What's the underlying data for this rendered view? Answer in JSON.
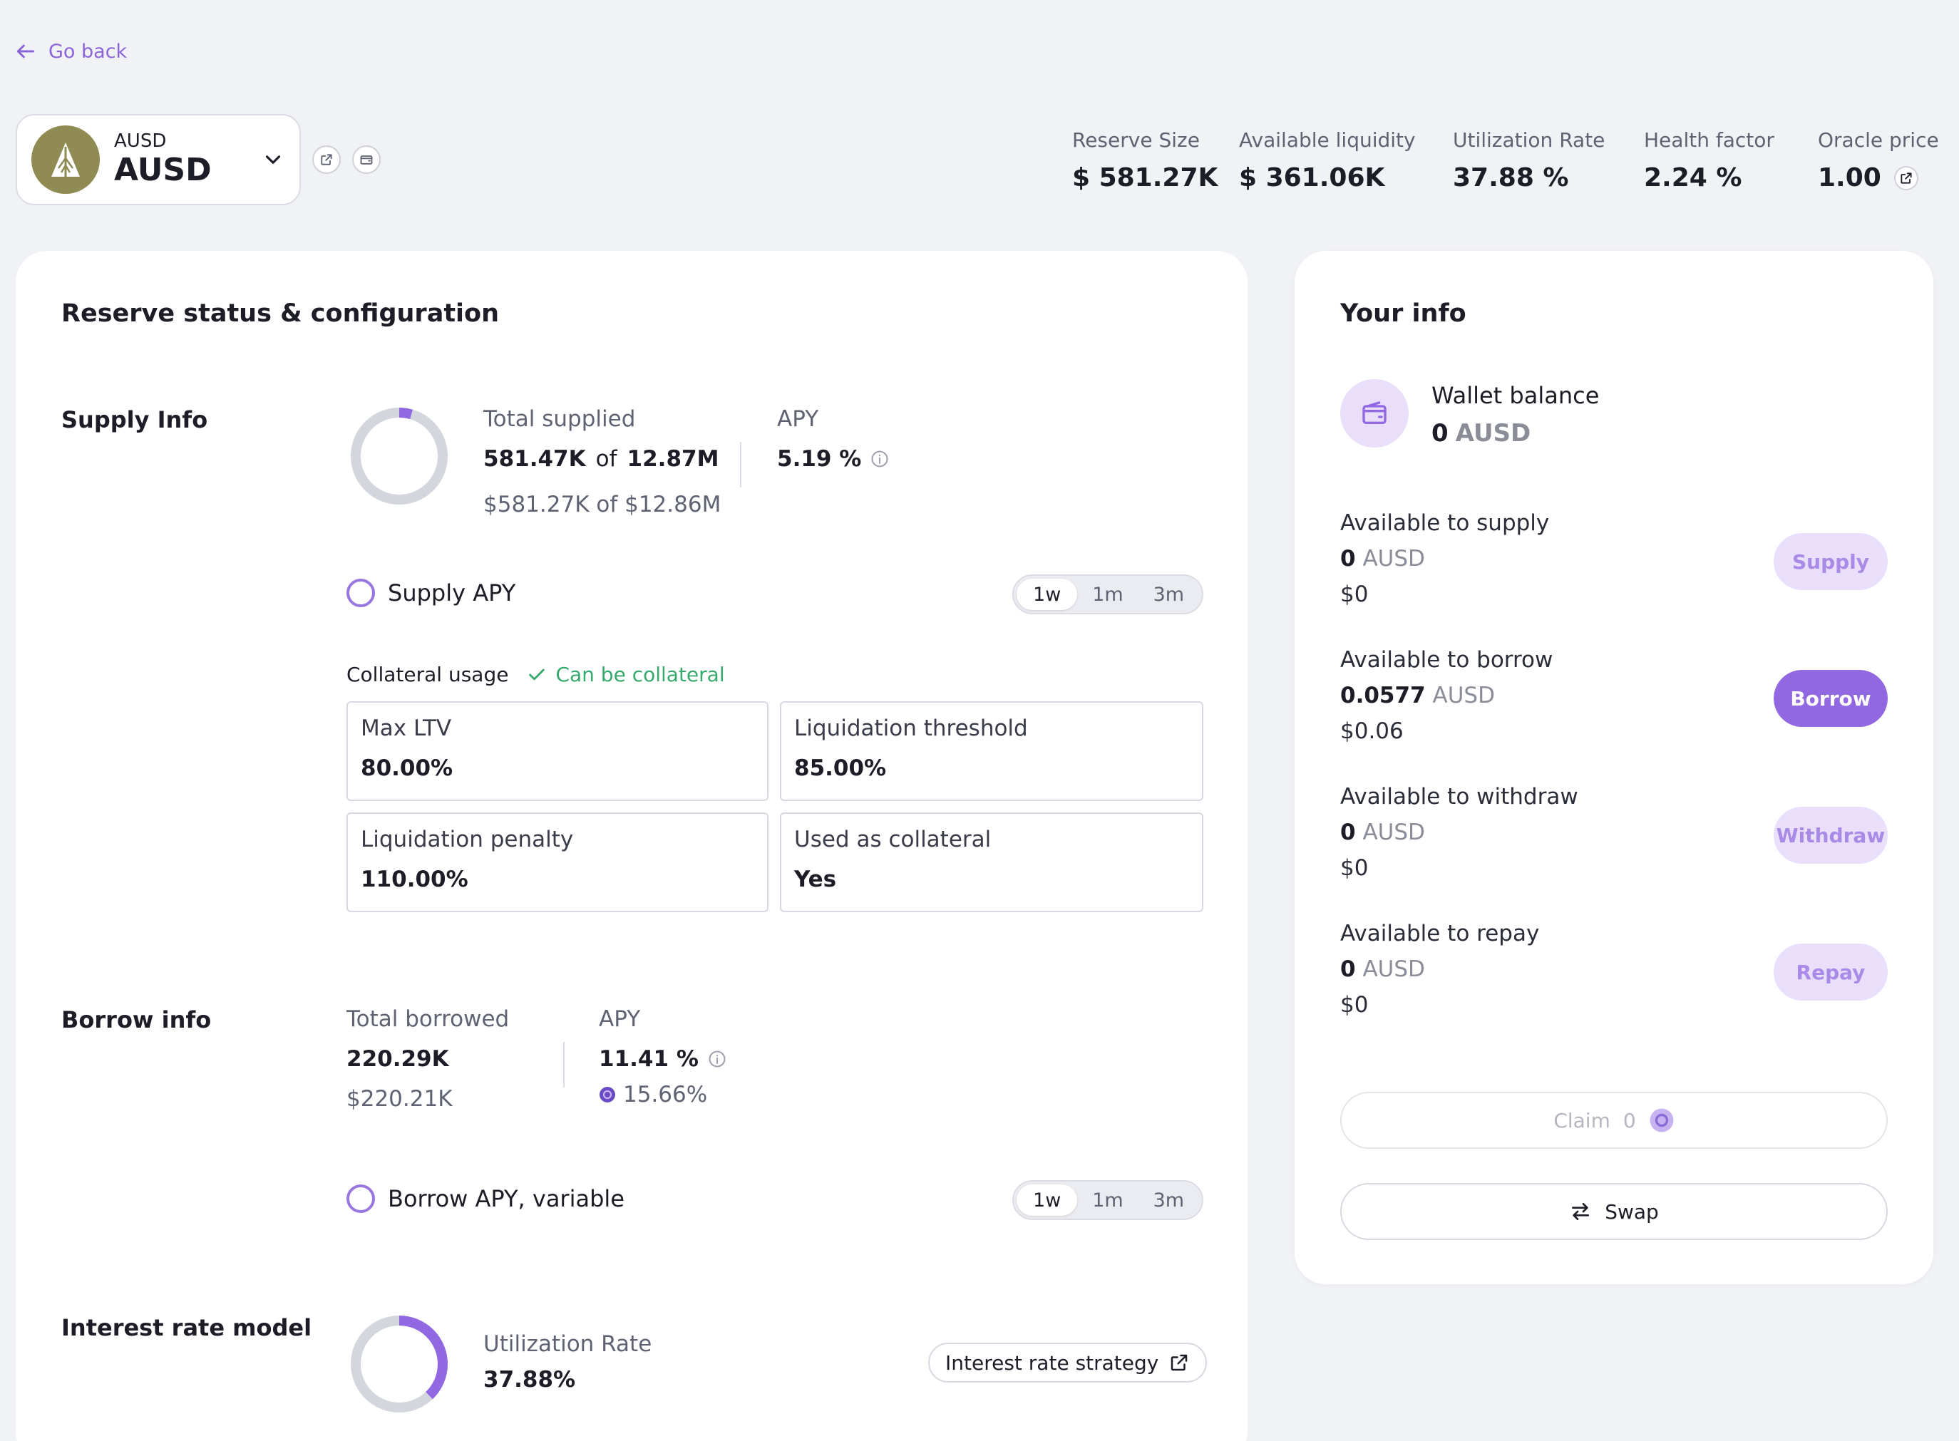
{
  "nav": {
    "go_back": "Go back"
  },
  "asset": {
    "symbol_small": "AUSD",
    "symbol": "AUSD"
  },
  "stats": [
    {
      "label": "Reserve Size",
      "value": "$ 581.27K"
    },
    {
      "label": "Available liquidity",
      "value": "$ 361.06K"
    },
    {
      "label": "Utilization Rate",
      "value": "37.88 %"
    },
    {
      "label": "Health factor",
      "value": "2.24 %"
    },
    {
      "label": "Oracle price",
      "value": "1.00"
    }
  ],
  "reserve": {
    "title": "Reserve status & configuration",
    "supply": {
      "label": "Supply Info",
      "total_label": "Total supplied",
      "total_amount": "581.47K",
      "of_word": "of",
      "cap_amount": "12.87M",
      "usd_line": "$581.27K of $12.86M",
      "apy_label": "APY",
      "apy_value": "5.19 %",
      "usage_fraction": 0.045,
      "chart_label": "Supply APY",
      "timeframes": [
        "1w",
        "1m",
        "3m"
      ],
      "active_timeframe": "1w"
    },
    "collateral": {
      "label": "Collateral usage",
      "status": "Can be collateral",
      "boxes": [
        {
          "label": "Max LTV",
          "value": "80.00%"
        },
        {
          "label": "Liquidation threshold",
          "value": "85.00%"
        },
        {
          "label": "Liquidation penalty",
          "value": "110.00%"
        },
        {
          "label": "Used as collateral",
          "value": "Yes"
        }
      ]
    },
    "borrow": {
      "label": "Borrow info",
      "total_label": "Total borrowed",
      "total_amount": "220.29K",
      "usd_line": "$220.21K",
      "apy_label": "APY",
      "apy_value": "11.41 %",
      "reward_apy": "15.66%",
      "chart_label": "Borrow APY, variable",
      "timeframes": [
        "1w",
        "1m",
        "3m"
      ],
      "active_timeframe": "1w"
    },
    "irm": {
      "label": "Interest rate model",
      "util_label": "Utilization Rate",
      "util_value": "37.88%",
      "util_fraction": 0.3788,
      "strategy_button": "Interest rate strategy"
    }
  },
  "your_info": {
    "title": "Your info",
    "wallet_label": "Wallet balance",
    "wallet_amount": "0",
    "wallet_symbol": "AUSD",
    "rows": [
      {
        "title": "Available to supply",
        "amount": "0",
        "symbol": "AUSD",
        "usd": "$0",
        "button": "Supply"
      },
      {
        "title": "Available to borrow",
        "amount": "0.0577",
        "symbol": "AUSD",
        "usd": "$0.06",
        "button": "Borrow"
      },
      {
        "title": "Available to withdraw",
        "amount": "0",
        "symbol": "AUSD",
        "usd": "$0",
        "button": "Withdraw"
      },
      {
        "title": "Available to repay",
        "amount": "0",
        "symbol": "AUSD",
        "usd": "$0",
        "button": "Repay"
      }
    ],
    "claim_label": "Claim",
    "claim_amount": "0",
    "swap_label": "Swap"
  },
  "colors": {
    "accent": "#9168e2",
    "accent_soft": "#eadffb",
    "success": "#36a96d",
    "background": "#f1f2f6"
  }
}
